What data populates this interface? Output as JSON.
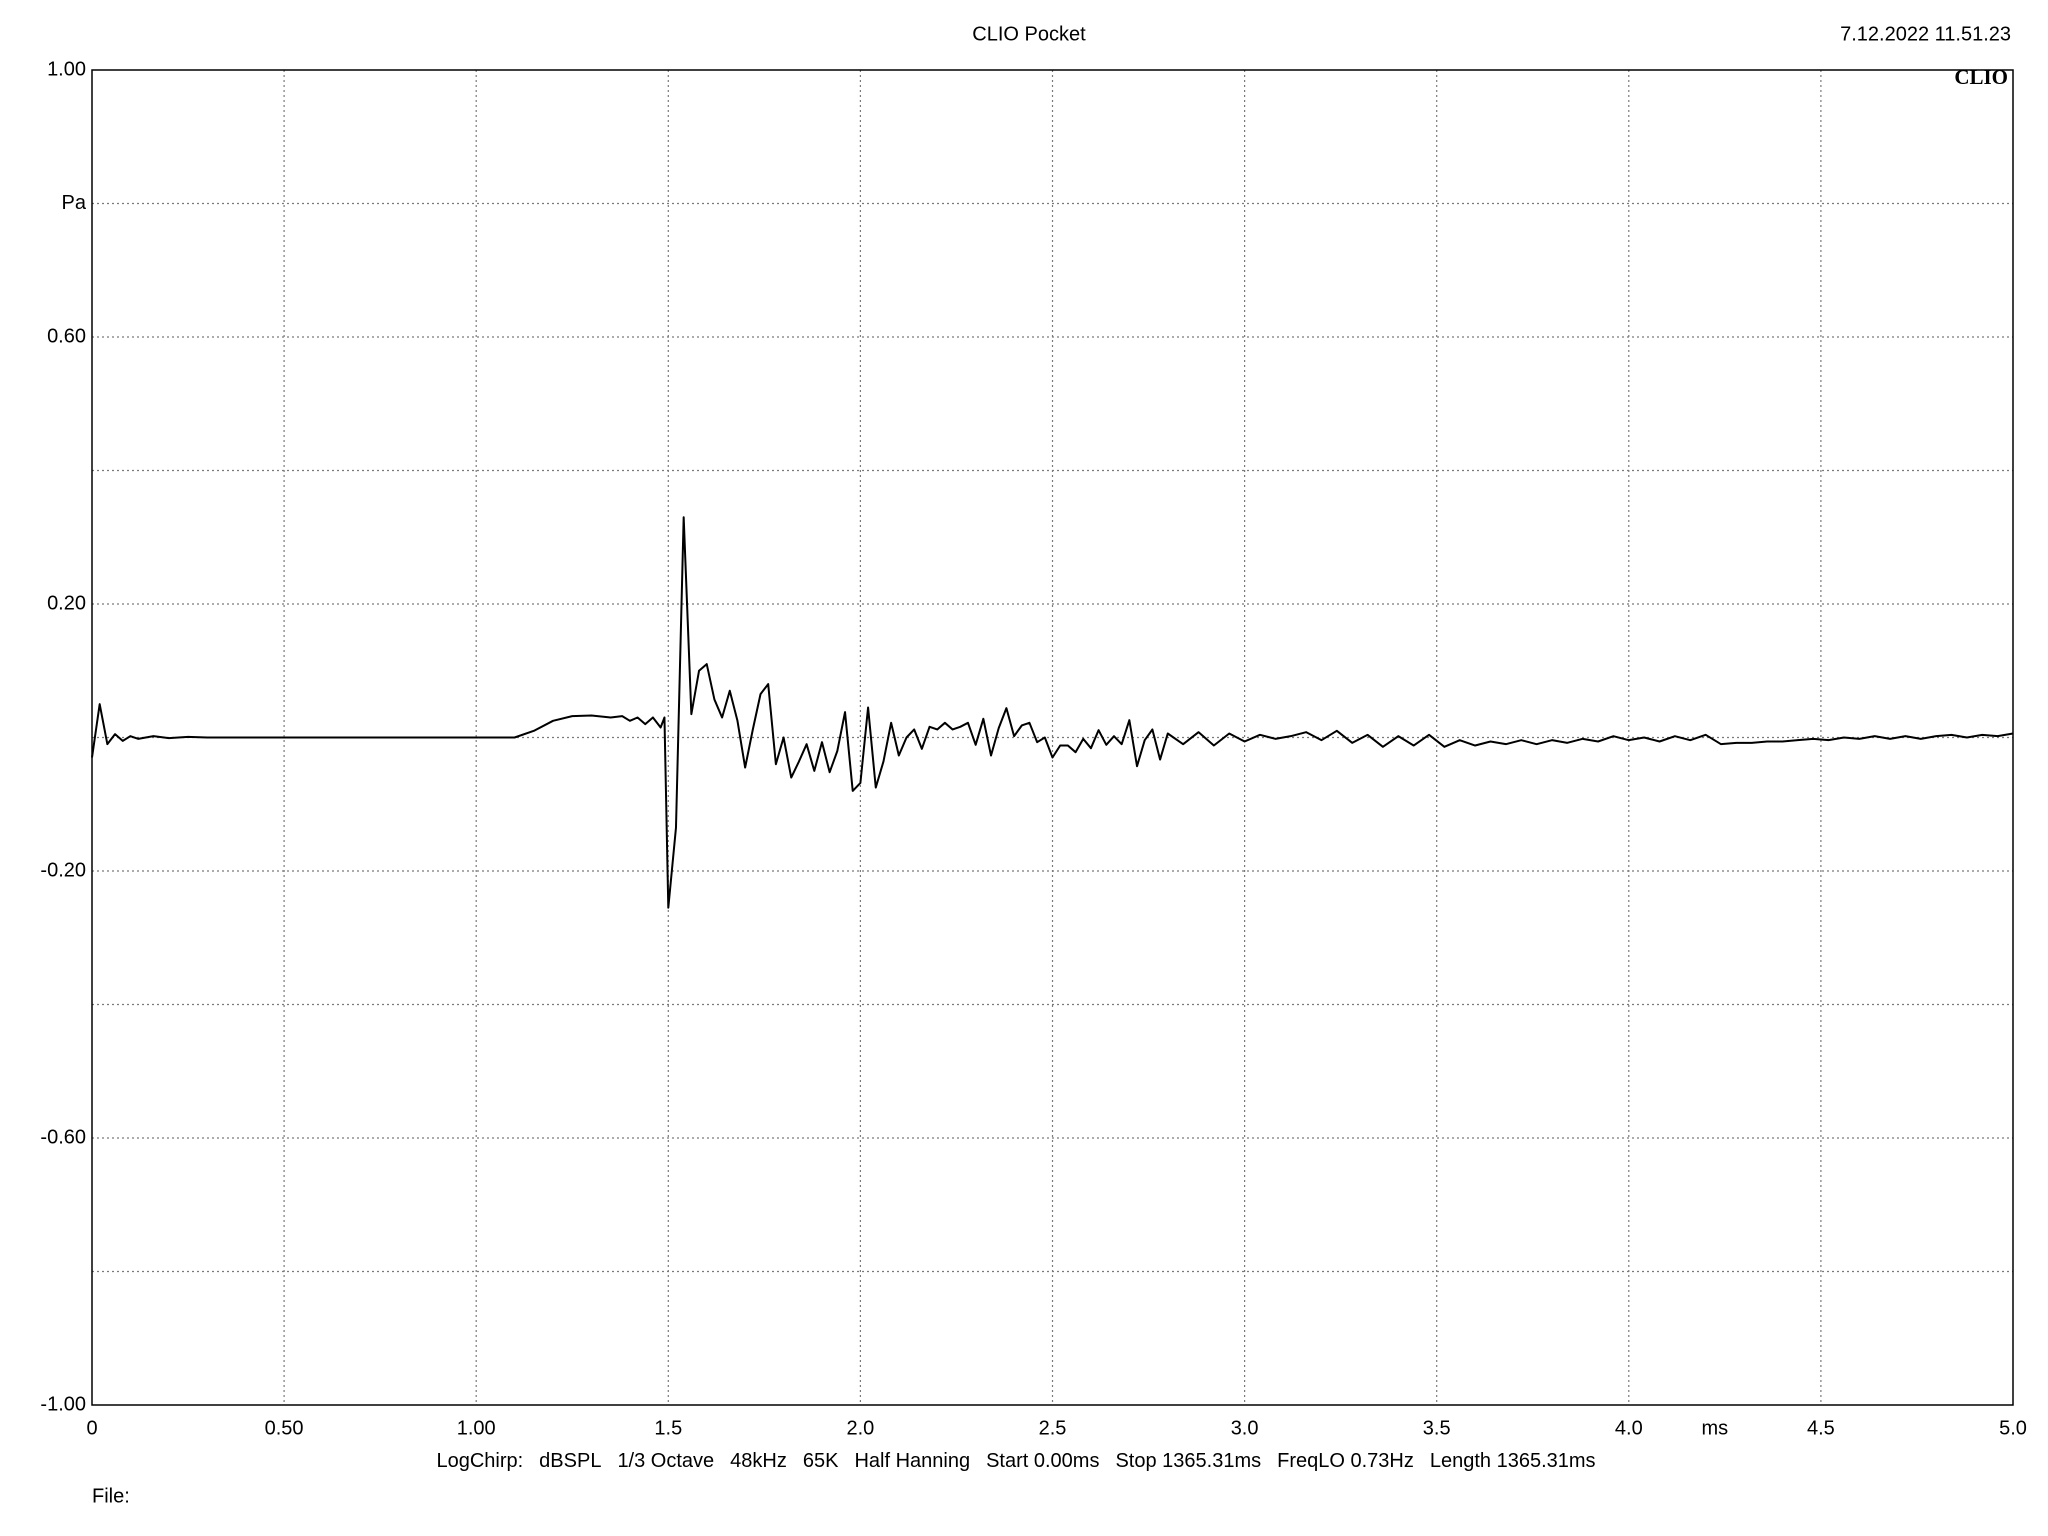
{
  "chart_data": {
    "type": "line",
    "title": "CLIO Pocket",
    "timestamp": "7.12.2022 11.51.23",
    "logo": "CLIO",
    "y_label": "Pa",
    "x_label": "ms",
    "footer": [
      "LogChirp:",
      "dBSPL",
      "1/3 Octave",
      "48kHz",
      "65K",
      "Half Hanning",
      "Start 0.00ms",
      "Stop 1365.31ms",
      "FreqLO 0.73Hz",
      "Length 1365.31ms"
    ],
    "file_label": "File:",
    "xlim": [
      0,
      5
    ],
    "ylim": [
      -1,
      1
    ],
    "xticks": [
      0,
      {
        "value": 0.5,
        "label": "0.50"
      },
      {
        "value": 1,
        "label": "1.00"
      },
      1.5,
      {
        "value": 2,
        "label": "2.0"
      },
      2.5,
      {
        "value": 3,
        "label": "3.0"
      },
      3.5,
      {
        "value": 4,
        "label": "4.0"
      },
      4.5,
      {
        "value": 5,
        "label": "5.0"
      }
    ],
    "yticks": [
      {
        "value": 1,
        "label": "1.00"
      },
      {
        "value": 0.8,
        "label": null
      },
      {
        "value": 0.6,
        "label": "0.60"
      },
      {
        "value": 0.4,
        "label": null
      },
      {
        "value": 0.2,
        "label": "0.20"
      },
      {
        "value": 0,
        "label": null
      },
      {
        "value": -0.2,
        "label": "-0.20"
      },
      {
        "value": -0.4,
        "label": null
      },
      {
        "value": -0.6,
        "label": "-0.60"
      },
      {
        "value": -0.8,
        "label": null
      },
      {
        "value": -1,
        "label": "-1.00"
      }
    ],
    "grid": true,
    "series": [
      {
        "color": "#000000",
        "x": [
          0,
          0.02,
          0.04,
          0.06,
          0.08,
          0.1,
          0.12,
          0.16,
          0.2,
          0.25,
          0.3,
          0.35,
          1.1,
          1.15,
          1.2,
          1.25,
          1.3,
          1.35,
          1.38,
          1.4,
          1.42,
          1.44,
          1.46,
          1.48,
          1.49,
          1.5,
          1.52,
          1.54,
          1.56,
          1.58,
          1.6,
          1.62,
          1.64,
          1.66,
          1.68,
          1.7,
          1.72,
          1.74,
          1.76,
          1.78,
          1.8,
          1.82,
          1.84,
          1.86,
          1.88,
          1.9,
          1.92,
          1.94,
          1.96,
          1.98,
          2.0,
          2.02,
          2.04,
          2.06,
          2.08,
          2.1,
          2.12,
          2.14,
          2.16,
          2.18,
          2.2,
          2.22,
          2.24,
          2.26,
          2.28,
          2.3,
          2.32,
          2.34,
          2.36,
          2.38,
          2.4,
          2.42,
          2.44,
          2.46,
          2.48,
          2.5,
          2.52,
          2.54,
          2.56,
          2.58,
          2.6,
          2.62,
          2.64,
          2.66,
          2.68,
          2.7,
          2.72,
          2.74,
          2.76,
          2.78,
          2.8,
          2.84,
          2.88,
          2.92,
          2.96,
          3.0,
          3.04,
          3.08,
          3.12,
          3.16,
          3.2,
          3.24,
          3.28,
          3.32,
          3.36,
          3.4,
          3.44,
          3.48,
          3.52,
          3.56,
          3.6,
          3.64,
          3.68,
          3.72,
          3.76,
          3.8,
          3.84,
          3.88,
          3.92,
          3.96,
          4.0,
          4.04,
          4.08,
          4.12,
          4.16,
          4.2,
          4.24,
          4.28,
          4.32,
          4.36,
          4.4,
          4.44,
          4.48,
          4.52,
          4.56,
          4.6,
          4.64,
          4.68,
          4.72,
          4.76,
          4.8,
          4.84,
          4.88,
          4.92,
          4.96,
          5.0
        ],
        "values": [
          -0.03,
          0.05,
          -0.01,
          0.005,
          -0.005,
          0.002,
          -0.002,
          0.002,
          -0.001,
          0.001,
          0,
          0,
          0,
          0.01,
          0.025,
          0.032,
          0.033,
          0.03,
          0.032,
          0.025,
          0.03,
          0.02,
          0.03,
          0.015,
          0.03,
          -0.255,
          -0.135,
          0.33,
          0.035,
          0.1,
          0.11,
          0.057,
          0.03,
          0.07,
          0.025,
          -0.045,
          0.012,
          0.065,
          0.08,
          -0.04,
          0,
          -0.06,
          -0.036,
          -0.01,
          -0.05,
          -0.007,
          -0.052,
          -0.02,
          0.038,
          -0.08,
          -0.068,
          0.045,
          -0.075,
          -0.036,
          0.022,
          -0.027,
          0,
          0.012,
          -0.017,
          0.016,
          0.012,
          0.022,
          0.012,
          0.016,
          0.022,
          -0.011,
          0.028,
          -0.027,
          0.014,
          0.044,
          0.002,
          0.018,
          0.022,
          -0.007,
          0,
          -0.03,
          -0.012,
          -0.012,
          -0.022,
          -0.002,
          -0.016,
          0.011,
          -0.011,
          0.002,
          -0.01,
          0.026,
          -0.043,
          -0.004,
          0.012,
          -0.033,
          0.006,
          -0.01,
          0.008,
          -0.012,
          0.006,
          -0.006,
          0.004,
          -0.002,
          0.002,
          0.008,
          -0.004,
          0.01,
          -0.008,
          0.004,
          -0.014,
          0.002,
          -0.012,
          0.004,
          -0.014,
          -0.004,
          -0.012,
          -0.006,
          -0.01,
          -0.004,
          -0.01,
          -0.004,
          -0.008,
          -0.002,
          -0.006,
          0.002,
          -0.004,
          0,
          -0.006,
          0.002,
          -0.004,
          0.004,
          -0.01,
          -0.008,
          -0.008,
          -0.006,
          -0.006,
          -0.004,
          -0.002,
          -0.004,
          0,
          -0.002,
          0.002,
          -0.002,
          0.002,
          -0.002,
          0.002,
          0.004,
          0,
          0.004,
          0.002,
          0.006
        ]
      }
    ]
  }
}
